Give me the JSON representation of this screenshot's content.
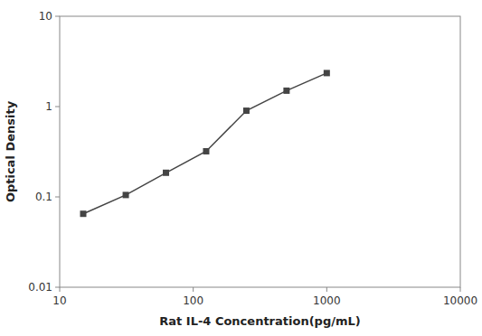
{
  "chart_data": {
    "type": "line",
    "x": [
      15,
      31.25,
      62.5,
      125,
      250,
      500,
      1000
    ],
    "values": [
      0.065,
      0.105,
      0.185,
      0.32,
      0.9,
      1.5,
      2.35
    ],
    "xlabel": "Rat IL-4 Concentration(pg/mL)",
    "ylabel": "Optical Density",
    "xlim": [
      10,
      10000
    ],
    "ylim": [
      0.01,
      10
    ],
    "xticks": [
      10,
      100,
      1000,
      10000
    ],
    "yticks": [
      0.01,
      0.1,
      1,
      10
    ],
    "log": true,
    "grid": false,
    "color": "#444444",
    "marker": "square"
  }
}
